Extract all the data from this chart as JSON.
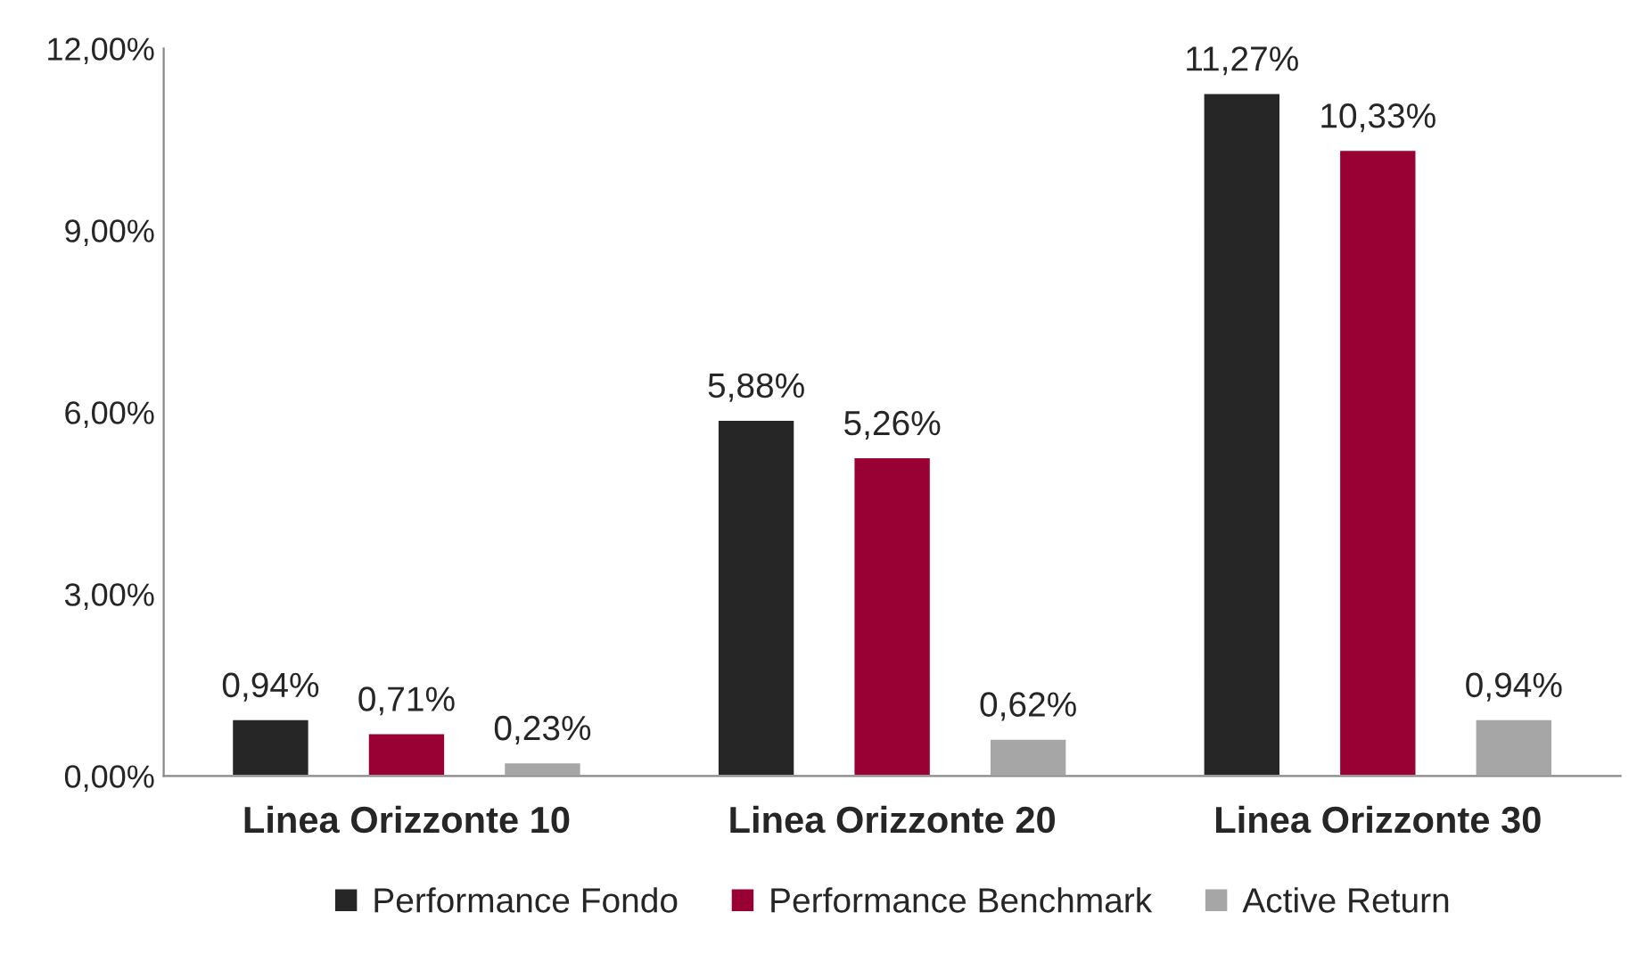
{
  "chart_data": {
    "type": "bar",
    "categories": [
      "Linea Orizzonte 10",
      "Linea Orizzonte 20",
      "Linea Orizzonte 30"
    ],
    "series": [
      {
        "name": "Performance Fondo",
        "color": "#262626",
        "values": [
          0.94,
          5.88,
          11.27
        ],
        "value_labels": [
          "0,94%",
          "5,88%",
          "11,27%"
        ]
      },
      {
        "name": "Performance Benchmark",
        "color": "#990033",
        "values": [
          0.71,
          5.26,
          10.33
        ],
        "value_labels": [
          "0,71%",
          "5,26%",
          "10,33%"
        ]
      },
      {
        "name": "Active Return",
        "color": "#a6a6a6",
        "values": [
          0.23,
          0.62,
          0.94
        ],
        "value_labels": [
          "0,23%",
          "0,62%",
          "0,94%"
        ]
      }
    ],
    "ylim": [
      0,
      12
    ],
    "yticks": [
      {
        "value": 0,
        "label": "0,00%"
      },
      {
        "value": 3,
        "label": "3,00%"
      },
      {
        "value": 6,
        "label": "6,00%"
      },
      {
        "value": 9,
        "label": "9,00%"
      },
      {
        "value": 12,
        "label": "12,00%"
      }
    ],
    "grid": false,
    "legend": "bottom"
  }
}
